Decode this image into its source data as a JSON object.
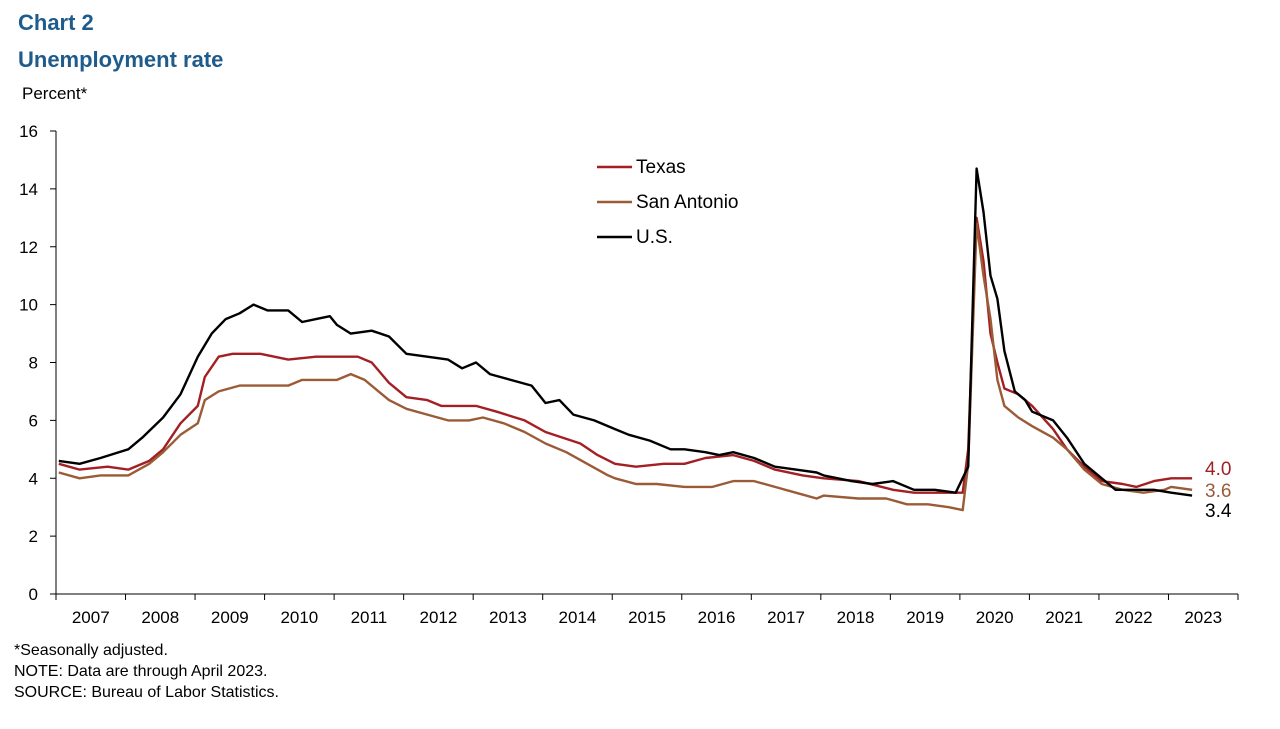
{
  "header": {
    "chart_label": "Chart 2",
    "title": "Unemployment  rate"
  },
  "footer": {
    "note1": "*Seasonally adjusted.",
    "note2": "NOTE: Data are through April 2023.",
    "note3": "SOURCE:  Bureau  of Labor Statistics."
  },
  "chart_data": {
    "type": "line",
    "title": "Unemployment  rate",
    "xlabel": "",
    "ylabel": "Percent*",
    "ylim": [
      0,
      16
    ],
    "yticks": [
      0,
      2,
      4,
      6,
      8,
      10,
      12,
      14,
      16
    ],
    "xlim": [
      2006.96,
      2023.96
    ],
    "year_labels": [
      "2007",
      "2008",
      "2009",
      "2010",
      "2011",
      "2012",
      "2013",
      "2014",
      "2015",
      "2016",
      "2017",
      "2018",
      "2019",
      "2020",
      "2021",
      "2022",
      "2023"
    ],
    "legend": [
      "Texas",
      "San Antonio",
      "U.S."
    ],
    "legend_position": "top-center",
    "end_labels": [
      "4.0",
      "3.6",
      "3.4"
    ],
    "series": [
      {
        "name": "Texas",
        "color": "#a31f24",
        "points": [
          [
            2007.0,
            4.5
          ],
          [
            2007.3,
            4.3
          ],
          [
            2007.7,
            4.4
          ],
          [
            2008.0,
            4.3
          ],
          [
            2008.3,
            4.6
          ],
          [
            2008.5,
            5.0
          ],
          [
            2008.75,
            5.9
          ],
          [
            2009.0,
            6.5
          ],
          [
            2009.1,
            7.5
          ],
          [
            2009.3,
            8.2
          ],
          [
            2009.5,
            8.3
          ],
          [
            2009.9,
            8.3
          ],
          [
            2010.3,
            8.1
          ],
          [
            2010.7,
            8.2
          ],
          [
            2011.0,
            8.2
          ],
          [
            2011.3,
            8.2
          ],
          [
            2011.5,
            8.0
          ],
          [
            2011.75,
            7.3
          ],
          [
            2012.0,
            6.8
          ],
          [
            2012.3,
            6.7
          ],
          [
            2012.5,
            6.5
          ],
          [
            2013.0,
            6.5
          ],
          [
            2013.3,
            6.3
          ],
          [
            2013.7,
            6.0
          ],
          [
            2014.0,
            5.6
          ],
          [
            2014.5,
            5.2
          ],
          [
            2014.75,
            4.8
          ],
          [
            2015.0,
            4.5
          ],
          [
            2015.3,
            4.4
          ],
          [
            2015.7,
            4.5
          ],
          [
            2016.0,
            4.5
          ],
          [
            2016.3,
            4.7
          ],
          [
            2016.7,
            4.8
          ],
          [
            2017.0,
            4.6
          ],
          [
            2017.3,
            4.3
          ],
          [
            2017.7,
            4.1
          ],
          [
            2018.0,
            4.0
          ],
          [
            2018.5,
            3.9
          ],
          [
            2019.0,
            3.6
          ],
          [
            2019.3,
            3.5
          ],
          [
            2019.7,
            3.5
          ],
          [
            2020.0,
            3.5
          ],
          [
            2020.08,
            5.0
          ],
          [
            2020.2,
            13.0
          ],
          [
            2020.3,
            11.5
          ],
          [
            2020.4,
            9.0
          ],
          [
            2020.5,
            8.0
          ],
          [
            2020.6,
            7.1
          ],
          [
            2020.8,
            6.9
          ],
          [
            2021.0,
            6.5
          ],
          [
            2021.3,
            5.7
          ],
          [
            2021.5,
            5.0
          ],
          [
            2021.75,
            4.4
          ],
          [
            2022.0,
            3.9
          ],
          [
            2022.3,
            3.8
          ],
          [
            2022.5,
            3.7
          ],
          [
            2022.75,
            3.9
          ],
          [
            2023.0,
            4.0
          ],
          [
            2023.3,
            4.0
          ]
        ]
      },
      {
        "name": "San Antonio",
        "color": "#9b5b36",
        "points": [
          [
            2007.0,
            4.2
          ],
          [
            2007.3,
            4.0
          ],
          [
            2007.6,
            4.1
          ],
          [
            2008.0,
            4.1
          ],
          [
            2008.3,
            4.5
          ],
          [
            2008.5,
            4.9
          ],
          [
            2008.75,
            5.5
          ],
          [
            2009.0,
            5.9
          ],
          [
            2009.1,
            6.7
          ],
          [
            2009.3,
            7.0
          ],
          [
            2009.6,
            7.2
          ],
          [
            2010.0,
            7.2
          ],
          [
            2010.3,
            7.2
          ],
          [
            2010.5,
            7.4
          ],
          [
            2011.0,
            7.4
          ],
          [
            2011.2,
            7.6
          ],
          [
            2011.4,
            7.4
          ],
          [
            2011.75,
            6.7
          ],
          [
            2012.0,
            6.4
          ],
          [
            2012.3,
            6.2
          ],
          [
            2012.6,
            6.0
          ],
          [
            2012.9,
            6.0
          ],
          [
            2013.1,
            6.1
          ],
          [
            2013.4,
            5.9
          ],
          [
            2013.7,
            5.6
          ],
          [
            2014.0,
            5.2
          ],
          [
            2014.3,
            4.9
          ],
          [
            2014.6,
            4.5
          ],
          [
            2014.9,
            4.1
          ],
          [
            2015.0,
            4.0
          ],
          [
            2015.3,
            3.8
          ],
          [
            2015.6,
            3.8
          ],
          [
            2016.0,
            3.7
          ],
          [
            2016.4,
            3.7
          ],
          [
            2016.7,
            3.9
          ],
          [
            2017.0,
            3.9
          ],
          [
            2017.3,
            3.7
          ],
          [
            2017.6,
            3.5
          ],
          [
            2017.9,
            3.3
          ],
          [
            2018.0,
            3.4
          ],
          [
            2018.5,
            3.3
          ],
          [
            2018.9,
            3.3
          ],
          [
            2019.2,
            3.1
          ],
          [
            2019.5,
            3.1
          ],
          [
            2019.8,
            3.0
          ],
          [
            2020.0,
            2.9
          ],
          [
            2020.08,
            4.5
          ],
          [
            2020.2,
            12.8
          ],
          [
            2020.3,
            11.0
          ],
          [
            2020.4,
            9.5
          ],
          [
            2020.5,
            7.4
          ],
          [
            2020.6,
            6.5
          ],
          [
            2020.8,
            6.1
          ],
          [
            2021.0,
            5.8
          ],
          [
            2021.3,
            5.4
          ],
          [
            2021.5,
            5.0
          ],
          [
            2021.75,
            4.3
          ],
          [
            2022.0,
            3.8
          ],
          [
            2022.3,
            3.6
          ],
          [
            2022.6,
            3.5
          ],
          [
            2022.9,
            3.6
          ],
          [
            2023.0,
            3.7
          ],
          [
            2023.3,
            3.6
          ]
        ]
      },
      {
        "name": "U.S.",
        "color": "#000000",
        "points": [
          [
            2007.0,
            4.6
          ],
          [
            2007.3,
            4.5
          ],
          [
            2007.6,
            4.7
          ],
          [
            2008.0,
            5.0
          ],
          [
            2008.2,
            5.4
          ],
          [
            2008.5,
            6.1
          ],
          [
            2008.75,
            6.9
          ],
          [
            2009.0,
            8.2
          ],
          [
            2009.2,
            9.0
          ],
          [
            2009.4,
            9.5
          ],
          [
            2009.6,
            9.7
          ],
          [
            2009.8,
            10.0
          ],
          [
            2010.0,
            9.8
          ],
          [
            2010.3,
            9.8
          ],
          [
            2010.5,
            9.4
          ],
          [
            2010.7,
            9.5
          ],
          [
            2010.9,
            9.6
          ],
          [
            2011.0,
            9.3
          ],
          [
            2011.2,
            9.0
          ],
          [
            2011.5,
            9.1
          ],
          [
            2011.75,
            8.9
          ],
          [
            2012.0,
            8.3
          ],
          [
            2012.3,
            8.2
          ],
          [
            2012.6,
            8.1
          ],
          [
            2012.8,
            7.8
          ],
          [
            2013.0,
            8.0
          ],
          [
            2013.2,
            7.6
          ],
          [
            2013.5,
            7.4
          ],
          [
            2013.8,
            7.2
          ],
          [
            2014.0,
            6.6
          ],
          [
            2014.2,
            6.7
          ],
          [
            2014.4,
            6.2
          ],
          [
            2014.7,
            6.0
          ],
          [
            2015.0,
            5.7
          ],
          [
            2015.2,
            5.5
          ],
          [
            2015.5,
            5.3
          ],
          [
            2015.8,
            5.0
          ],
          [
            2016.0,
            5.0
          ],
          [
            2016.3,
            4.9
          ],
          [
            2016.5,
            4.8
          ],
          [
            2016.7,
            4.9
          ],
          [
            2017.0,
            4.7
          ],
          [
            2017.3,
            4.4
          ],
          [
            2017.6,
            4.3
          ],
          [
            2017.9,
            4.2
          ],
          [
            2018.0,
            4.1
          ],
          [
            2018.4,
            3.9
          ],
          [
            2018.7,
            3.8
          ],
          [
            2019.0,
            3.9
          ],
          [
            2019.3,
            3.6
          ],
          [
            2019.6,
            3.6
          ],
          [
            2019.9,
            3.5
          ],
          [
            2020.08,
            4.4
          ],
          [
            2020.2,
            14.7
          ],
          [
            2020.3,
            13.2
          ],
          [
            2020.4,
            11.0
          ],
          [
            2020.5,
            10.2
          ],
          [
            2020.6,
            8.4
          ],
          [
            2020.75,
            7.0
          ],
          [
            2020.9,
            6.7
          ],
          [
            2021.0,
            6.3
          ],
          [
            2021.3,
            6.0
          ],
          [
            2021.5,
            5.4
          ],
          [
            2021.75,
            4.5
          ],
          [
            2022.0,
            4.0
          ],
          [
            2022.2,
            3.6
          ],
          [
            2022.5,
            3.6
          ],
          [
            2022.75,
            3.6
          ],
          [
            2023.0,
            3.5
          ],
          [
            2023.3,
            3.4
          ]
        ]
      }
    ]
  }
}
